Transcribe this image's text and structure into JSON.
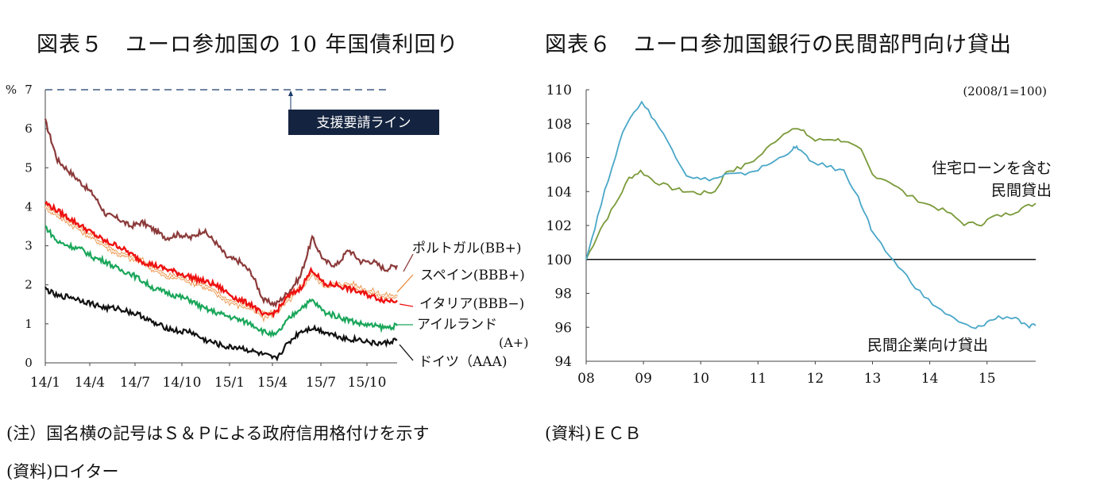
{
  "chart_data": [
    {
      "type": "line",
      "title": "図表５　ユーロ参加国の 10 年国債利回り",
      "ylabel": "%",
      "ylim": [
        0,
        7
      ],
      "yticks": [
        "0",
        "1",
        "2",
        "3",
        "4",
        "5",
        "6",
        "7"
      ],
      "xticks": [
        "14/1",
        "14/4",
        "14/7",
        "14/10",
        "15/1",
        "15/4",
        "15/7",
        "15/10"
      ],
      "grid": false,
      "threshold": {
        "label": "支援要請ライン",
        "value": 7
      },
      "series": [
        {
          "name": "ポルトガル(BB+)",
          "color": "#8b3a3a",
          "values": [
            6.2,
            5.2,
            4.9,
            4.6,
            4.3,
            3.8,
            3.7,
            3.5,
            3.6,
            3.4,
            3.2,
            3.3,
            3.2,
            3.4,
            3.1,
            2.7,
            2.6,
            2.3,
            1.6,
            1.5,
            1.8,
            2.2,
            3.2,
            2.6,
            2.5,
            2.9,
            2.6,
            2.6,
            2.4,
            2.5
          ]
        },
        {
          "name": "スペイン(BBB+)",
          "color": "#e88a3a",
          "values": [
            4.0,
            3.8,
            3.6,
            3.4,
            3.2,
            3.0,
            2.8,
            2.7,
            2.6,
            2.4,
            2.2,
            2.2,
            2.1,
            2.0,
            1.8,
            1.6,
            1.5,
            1.4,
            1.2,
            1.3,
            1.6,
            1.9,
            2.3,
            2.0,
            2.0,
            2.0,
            1.9,
            1.8,
            1.7,
            1.7
          ]
        },
        {
          "name": "イタリア(BBB-)",
          "color": "#ee1111",
          "values": [
            4.1,
            3.9,
            3.7,
            3.5,
            3.3,
            3.1,
            3.0,
            2.8,
            2.6,
            2.5,
            2.4,
            2.3,
            2.2,
            2.1,
            2.0,
            1.8,
            1.6,
            1.5,
            1.2,
            1.3,
            1.7,
            1.9,
            2.4,
            2.0,
            2.0,
            1.9,
            1.8,
            1.7,
            1.6,
            1.6
          ]
        },
        {
          "name": "アイルランド(A+)",
          "color": "#1aa65a",
          "values": [
            3.5,
            3.1,
            3.0,
            2.9,
            2.7,
            2.6,
            2.4,
            2.3,
            2.1,
            1.9,
            1.8,
            1.7,
            1.6,
            1.4,
            1.3,
            1.2,
            1.1,
            1.0,
            0.8,
            0.7,
            1.1,
            1.4,
            1.6,
            1.3,
            1.2,
            1.1,
            1.0,
            0.95,
            0.9,
            0.95
          ]
        },
        {
          "name": "ドイツ（AAA）",
          "color": "#111111",
          "values": [
            1.9,
            1.7,
            1.7,
            1.6,
            1.5,
            1.4,
            1.4,
            1.3,
            1.2,
            1.0,
            0.9,
            0.8,
            0.8,
            0.6,
            0.5,
            0.4,
            0.4,
            0.3,
            0.2,
            0.1,
            0.5,
            0.8,
            0.9,
            0.8,
            0.7,
            0.6,
            0.6,
            0.5,
            0.5,
            0.6
          ]
        }
      ]
    },
    {
      "type": "line",
      "title": "図表６　ユーロ参加国銀行の民間部門向け貸出",
      "subtitle": "(2008/1=100)",
      "ylim": [
        94,
        110
      ],
      "yticks": [
        "94",
        "96",
        "98",
        "100",
        "102",
        "104",
        "106",
        "108",
        "110"
      ],
      "xticks": [
        "08",
        "09",
        "10",
        "11",
        "12",
        "13",
        "14",
        "15"
      ],
      "xlim": [
        2008,
        2015.85
      ],
      "grid": false,
      "baseline": 100,
      "series": [
        {
          "name": "住宅ローンを含む民間貸出",
          "color": "#7a9a3a",
          "x": [
            2008.0,
            2008.25,
            2008.5,
            2008.75,
            2008.95,
            2009.2,
            2009.5,
            2009.75,
            2010.0,
            2010.25,
            2010.45,
            2010.7,
            2011.0,
            2011.3,
            2011.6,
            2011.8,
            2012.0,
            2012.3,
            2012.5,
            2012.8,
            2013.0,
            2013.3,
            2013.6,
            2014.0,
            2014.3,
            2014.6,
            2014.9,
            2015.1,
            2015.4,
            2015.6,
            2015.85
          ],
          "values": [
            100,
            101.8,
            103.2,
            104.8,
            105.2,
            104.6,
            104.2,
            104.0,
            103.9,
            104.0,
            105.2,
            105.4,
            106.0,
            107.0,
            107.8,
            107.5,
            107.0,
            107.1,
            107.0,
            106.4,
            105.0,
            104.6,
            103.8,
            103.2,
            102.8,
            102.1,
            102.1,
            102.5,
            102.7,
            103.0,
            103.3
          ]
        },
        {
          "name": "民間企業向け貸出",
          "color": "#4aa7c7",
          "x": [
            2008.0,
            2008.2,
            2008.45,
            2008.7,
            2008.97,
            2009.2,
            2009.5,
            2009.75,
            2010.0,
            2010.3,
            2010.45,
            2010.7,
            2011.0,
            2011.3,
            2011.6,
            2011.7,
            2011.9,
            2012.2,
            2012.5,
            2012.7,
            2012.9,
            2013.0,
            2013.3,
            2013.6,
            2013.9,
            2014.2,
            2014.5,
            2014.8,
            2015.0,
            2015.2,
            2015.5,
            2015.7,
            2015.85
          ],
          "values": [
            100,
            102.5,
            105.5,
            108.0,
            109.3,
            108.2,
            106.5,
            105.0,
            104.7,
            104.8,
            105.0,
            105.0,
            105.3,
            105.8,
            106.5,
            106.6,
            105.8,
            105.5,
            105.2,
            104.0,
            102.5,
            101.5,
            100.2,
            99.0,
            97.8,
            97.0,
            96.3,
            95.9,
            96.3,
            96.6,
            96.6,
            96.0,
            96.1
          ]
        }
      ]
    }
  ],
  "notes": {
    "left_note": "(注）国名横の記号はＳ＆Ｐによる政府信用格付けを示す",
    "left_source": "(資料)ロイター",
    "right_source": "(資料)ＥＣＢ"
  },
  "labels": {
    "portugal": "ポルトガル(BB+)",
    "spain": "スペイン(BBB+)",
    "italy": "イタリア(BBB−)",
    "ireland1": "アイルランド",
    "ireland2": "(A+)",
    "germany": "ドイツ（AAA)",
    "housing1": "住宅ローンを含む",
    "housing2": "民間貸出",
    "corporate": "民間企業向け貸出"
  }
}
